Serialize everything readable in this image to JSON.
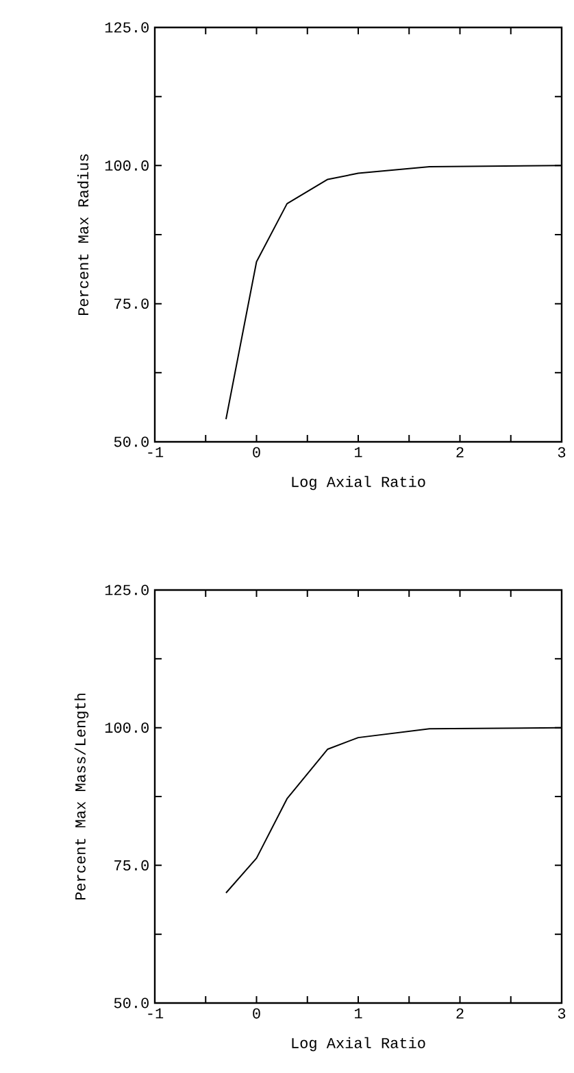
{
  "chart_data": [
    {
      "type": "line",
      "xlabel": "Log Axial Ratio",
      "ylabel": "Percent Max Radius",
      "xlim": [
        -1,
        3
      ],
      "ylim": [
        50,
        125
      ],
      "xticks": [
        -1,
        {
          "value": -0.5,
          "label": null
        },
        0,
        {
          "value": 0.5,
          "label": null
        },
        1,
        {
          "value": 1.5,
          "label": null
        },
        2,
        {
          "value": 2.5,
          "label": null
        },
        3
      ],
      "yticks": [
        {
          "value": 50,
          "label": "50.0"
        },
        {
          "value": 62.5,
          "label": null
        },
        {
          "value": 75,
          "label": "75.0"
        },
        {
          "value": 87.5,
          "label": null
        },
        {
          "value": 100,
          "label": "100.0"
        },
        {
          "value": 112.5,
          "label": null
        },
        {
          "value": 125,
          "label": "125.0"
        }
      ],
      "series": [
        {
          "color": "#000000",
          "x": [
            -0.3,
            0,
            0.3,
            0.7,
            1.0,
            1.7,
            3.0
          ],
          "values": [
            54.1,
            82.6,
            93.1,
            97.5,
            98.6,
            99.8,
            100
          ]
        }
      ]
    },
    {
      "type": "line",
      "xlabel": "Log Axial Ratio",
      "ylabel": "Percent Max Mass/Length",
      "xlim": [
        -1,
        3
      ],
      "ylim": [
        50,
        125
      ],
      "xticks": [
        -1,
        {
          "value": -0.5,
          "label": null
        },
        0,
        {
          "value": 0.5,
          "label": null
        },
        1,
        {
          "value": 1.5,
          "label": null
        },
        2,
        {
          "value": 2.5,
          "label": null
        },
        3
      ],
      "yticks": [
        {
          "value": 50,
          "label": "50.0"
        },
        {
          "value": 62.5,
          "label": null
        },
        {
          "value": 75,
          "label": "75.0"
        },
        {
          "value": 87.5,
          "label": null
        },
        {
          "value": 100,
          "label": "100.0"
        },
        {
          "value": 112.5,
          "label": null
        },
        {
          "value": 125,
          "label": "125.0"
        }
      ],
      "series": [
        {
          "color": "#000000",
          "x": [
            -0.3,
            0,
            0.3,
            0.7,
            1.0,
            1.7,
            3.0
          ],
          "values": [
            70.0,
            76.3,
            87.1,
            96.1,
            98.2,
            99.8,
            100
          ]
        }
      ]
    }
  ]
}
